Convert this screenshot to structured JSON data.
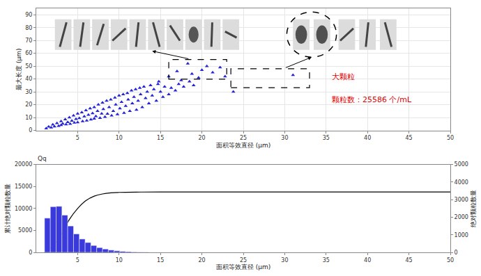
{
  "chart_data": [
    {
      "type": "scatter",
      "x_label": "面积等效直径 (µm)",
      "y_label": "最大长度 (µm)",
      "annotations": [
        "大颗粒",
        "颗粒数：25586 个/mL"
      ],
      "x": [
        1.2,
        1.5,
        1.8,
        2,
        2.2,
        2.5,
        2.7,
        3,
        3,
        3.2,
        3.5,
        3.6,
        3.8,
        4,
        4.1,
        4.3,
        4.5,
        4.6,
        4.8,
        5,
        5,
        5.2,
        5.5,
        5.6,
        5.8,
        6,
        6.1,
        6.3,
        6.5,
        6.6,
        6.8,
        7,
        7,
        7.2,
        7.4,
        7.5,
        7.7,
        7.9,
        8,
        8.1,
        8.3,
        8.5,
        8.6,
        8.8,
        9,
        9.1,
        9.3,
        9.5,
        9.6,
        9.8,
        10,
        10.1,
        10.3,
        10.5,
        10.6,
        10.8,
        11,
        11.1,
        11.3,
        11.5,
        11.6,
        11.8,
        12,
        12.1,
        12.3,
        12.5,
        12.6,
        12.8,
        13,
        13.2,
        13.4,
        13.6,
        13.8,
        14,
        14.2,
        14.5,
        14.7,
        15,
        15.3,
        15.5,
        16,
        16.3,
        16.8,
        17.2,
        17.8,
        18.5,
        19,
        14.8,
        16,
        17,
        17.5,
        18.3,
        18.8,
        19.6,
        20,
        20.6,
        21.3,
        22.2,
        22.8,
        23.8,
        31
      ],
      "values": [
        1.5,
        2.8,
        2.2,
        4.5,
        3,
        5.5,
        3.4,
        7,
        4,
        5.2,
        8.5,
        4.6,
        6.3,
        10,
        5,
        7.5,
        11.5,
        6,
        8.8,
        13,
        6.2,
        9.5,
        14,
        7.1,
        10.8,
        15.5,
        7.6,
        12,
        17,
        8.4,
        13.2,
        18,
        9,
        11,
        15,
        20,
        9.6,
        13,
        21.5,
        16.5,
        10.4,
        23,
        12.8,
        18,
        24,
        11.5,
        15,
        25.5,
        20,
        12.5,
        27,
        17,
        22,
        28,
        13.5,
        19,
        29,
        24,
        15,
        31,
        21,
        26,
        32,
        16,
        23,
        33,
        28,
        18,
        34,
        25,
        30,
        21,
        35,
        27,
        32,
        23,
        36,
        30,
        26,
        34,
        28,
        33,
        31,
        36,
        34,
        38,
        35,
        38,
        42,
        46,
        39,
        52,
        44,
        41,
        47,
        50,
        45,
        49,
        42,
        30,
        43
      ],
      "color": "#2424d6",
      "marker": "triangle",
      "xlim": [
        0,
        50
      ],
      "xticks": [
        5,
        10,
        15,
        20,
        25,
        30,
        35,
        40,
        45,
        50
      ],
      "ylim": [
        0,
        95
      ],
      "yticks": [
        0,
        10,
        20,
        30,
        40,
        50,
        60,
        70,
        80,
        90
      ],
      "grid": true
    },
    {
      "type": "bar",
      "title": "Qq",
      "x_label": "面积等效直径 (µm)",
      "y_label": "累计绝对颗粒数量",
      "y2_label": "绝对颗粒数量",
      "bins": [
        1,
        1.7,
        2.4,
        3.1,
        3.8,
        4.5,
        5.2,
        5.9,
        6.6,
        7.3,
        8,
        8.7,
        9.4,
        10.1,
        10.8,
        11.5,
        12.2,
        12.9,
        13.6
      ],
      "series": [
        {
          "type": "bar",
          "axis": "y2",
          "color": "#3a3adc",
          "values": [
            1950,
            2600,
            2620,
            2120,
            1500,
            1050,
            760,
            560,
            390,
            270,
            190,
            130,
            90,
            60,
            40,
            25,
            15,
            10
          ]
        },
        {
          "type": "line",
          "color": "#000000",
          "x": [
            1,
            2,
            3,
            4,
            5,
            6,
            7,
            8,
            9,
            10,
            12,
            15,
            50
          ],
          "values": [
            0,
            1500,
            4000,
            7500,
            10000,
            11800,
            12800,
            13300,
            13550,
            13650,
            13720,
            13750,
            13750
          ]
        }
      ],
      "xlim": [
        0,
        50
      ],
      "xticks": [
        5,
        10,
        15,
        20,
        25,
        30,
        35,
        40,
        45,
        50
      ],
      "ylim": [
        0,
        20000
      ],
      "yticks": [
        0,
        5000,
        10000,
        15000,
        20000
      ],
      "y2lim": [
        0,
        5000
      ],
      "y2ticks": [
        0,
        1000,
        2000,
        3000,
        4000,
        5000
      ],
      "grid": false
    }
  ]
}
